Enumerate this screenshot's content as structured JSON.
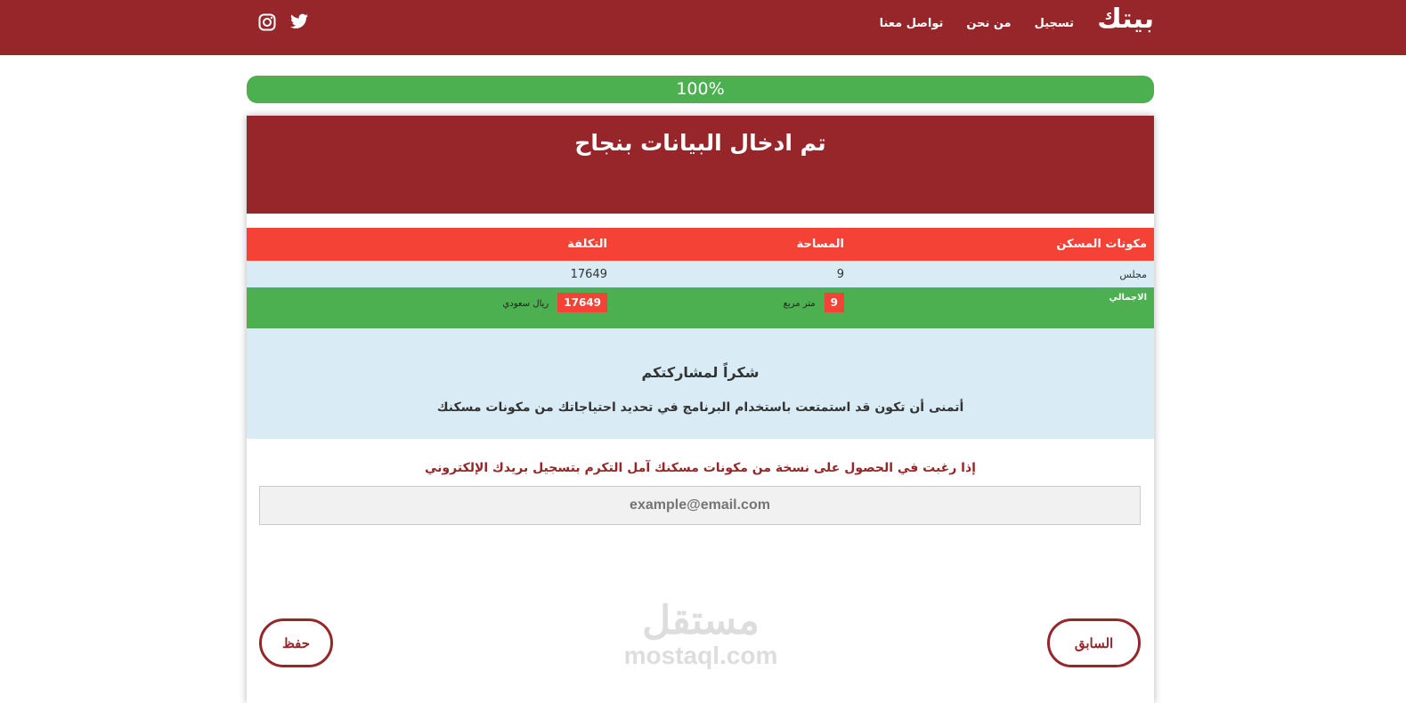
{
  "nav": {
    "brand": "بيتك",
    "links": [
      "تسجيل",
      "من نحن",
      "تواصل معنا"
    ],
    "social": [
      "twitter-icon",
      "instagram-icon"
    ]
  },
  "progress": {
    "value": 100,
    "label": "100%"
  },
  "card": {
    "title": "تم ادخال البيانات بنجاح"
  },
  "table": {
    "headers": [
      "مكونات المسكن",
      "المساحة",
      "التكلفة"
    ],
    "rows": [
      [
        "مجلس",
        "9",
        "17649"
      ]
    ],
    "total": {
      "label": "الاجمالي",
      "area": "9",
      "area_unit": "متر مربع",
      "cost": "17649",
      "cost_unit": "ريال سعودي"
    }
  },
  "thanks": {
    "title": "شكراً لمشاركتكم",
    "text": "أتمنى أن تكون قد استمتعت باستخدام البرنامج في تحديد احتياجاتك من مكونات مسكنك"
  },
  "email": {
    "prompt": "إذا رغبت في الحصول على نسخة من مكونات مسكنك آمل التكرم بتسجيل بريدك الإلكتروني",
    "placeholder": "example@email.com"
  },
  "buttons": {
    "prev": "السابق",
    "save": "حفظ"
  },
  "watermark": {
    "ar": "مستقل",
    "en": "mostaql.com"
  },
  "colors": {
    "primary": "#97262b",
    "header_row": "#f44336",
    "success": "#4caf50",
    "light": "#d9ecf5"
  }
}
